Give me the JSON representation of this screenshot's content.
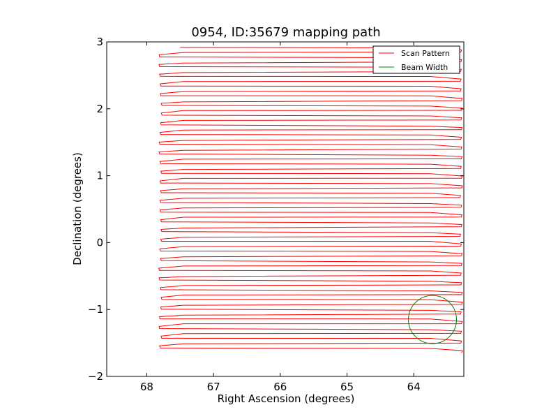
{
  "chart_data": {
    "type": "line",
    "title": "0954, ID:35679 mapping path",
    "xlabel": "Right Ascension (degrees)",
    "ylabel": "Declination (degrees)",
    "xlim": [
      68.6,
      63.25
    ],
    "ylim": [
      -2,
      3
    ],
    "x_ticks": [
      68,
      67,
      66,
      65,
      64
    ],
    "y_ticks": [
      3,
      2,
      1,
      0,
      -1,
      -2
    ],
    "x_tick_labels": [
      "68",
      "67",
      "66",
      "65",
      "64"
    ],
    "y_tick_labels": [
      "3",
      "2",
      "1",
      "0",
      "−1",
      "−2"
    ],
    "grid": false,
    "legend": {
      "position": "top-right",
      "entries": [
        {
          "label": "Scan Pattern",
          "color": "#ff0000"
        },
        {
          "label": "Beam Width",
          "color": "#008000"
        }
      ]
    },
    "series": [
      {
        "name": "Scan Pattern",
        "color": "#ff0000",
        "style": "raster",
        "ra_start": 67.5,
        "ra_min_left": 67.82,
        "ra_max_right": 63.27,
        "dec_top": 2.92,
        "dec_bottom": -1.58,
        "row_spacing": 0.145
      },
      {
        "name": "Beam Width",
        "color": "#008000",
        "shape": "circle",
        "center_ra": 63.72,
        "center_dec": -1.15,
        "radius_deg": 0.36
      }
    ]
  }
}
